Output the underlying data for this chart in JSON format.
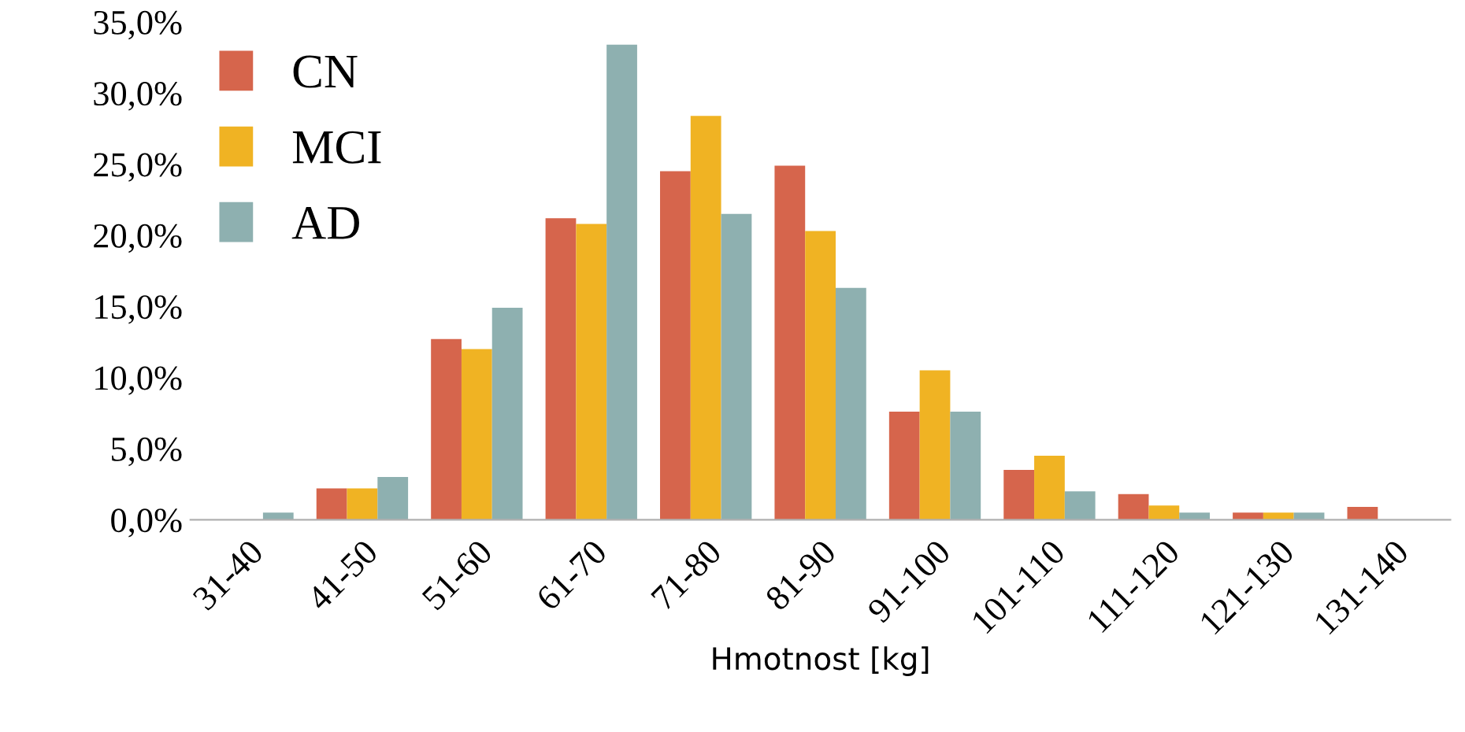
{
  "chart_data": {
    "type": "bar",
    "xlabel": "Hmotnost [kg]",
    "categories": [
      "31-40",
      "41-50",
      "51-60",
      "61-70",
      "71-80",
      "81-90",
      "91-100",
      "101-110",
      "111-120",
      "121-130",
      "131-140"
    ],
    "series": [
      {
        "name": "CN",
        "color": "#d6654c",
        "values": [
          0,
          2.2,
          12.7,
          21.2,
          24.5,
          24.9,
          7.6,
          3.5,
          1.8,
          0.5,
          0.9
        ]
      },
      {
        "name": "MCI",
        "color": "#f0b323",
        "values": [
          0,
          2.2,
          12.0,
          20.8,
          28.4,
          20.3,
          10.5,
          4.5,
          1.0,
          0.5,
          0
        ]
      },
      {
        "name": "AD",
        "color": "#8eb0b0",
        "values": [
          0.5,
          3.0,
          14.9,
          33.4,
          21.5,
          16.3,
          7.6,
          2.0,
          0.5,
          0.5,
          0
        ]
      }
    ],
    "ylim": [
      0,
      35
    ],
    "yticks": [
      {
        "value": 0,
        "label": "0,0%"
      },
      {
        "value": 5,
        "label": "5,0%"
      },
      {
        "value": 10,
        "label": "10,0%"
      },
      {
        "value": 15,
        "label": "15,0%"
      },
      {
        "value": 20,
        "label": "20,0%"
      },
      {
        "value": 25,
        "label": "25,0%"
      },
      {
        "value": 30,
        "label": "30,0%"
      },
      {
        "value": 35,
        "label": "35,0%"
      }
    ],
    "grid": false,
    "legend": "top left"
  }
}
